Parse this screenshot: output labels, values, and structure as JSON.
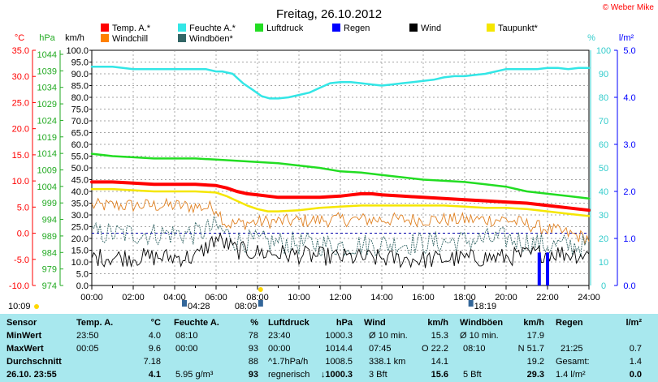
{
  "chart_data": {
    "type": "line",
    "title": "Freitag, 26.10.2012",
    "copyright": "© Weber Mike",
    "legend": [
      {
        "label": "Temp. A.*",
        "color": "#ff0000"
      },
      {
        "label": "Feuchte A.*",
        "color": "#33e6e6"
      },
      {
        "label": "Luftdruck",
        "color": "#22dd22"
      },
      {
        "label": "Regen",
        "color": "#0000ff"
      },
      {
        "label": "Wind",
        "color": "#000000"
      },
      {
        "label": "Taupunkt*",
        "color": "#f5e600"
      },
      {
        "label": "Windchill",
        "color": "#ff8000"
      },
      {
        "label": "Windböen*",
        "color": "#336666"
      }
    ],
    "axes": {
      "temp_unit": "°C",
      "temp_ticks": [
        "35.0",
        "30.0",
        "25.0",
        "20.0",
        "15.0",
        "10.0",
        "5.0",
        "0.0",
        "-5.0",
        "-10.0"
      ],
      "hpa_unit": "hPa",
      "hpa_ticks": [
        "1044",
        "1039",
        "1034",
        "1029",
        "1024",
        "1019",
        "1014",
        "1009",
        "1004",
        "999",
        "994",
        "989",
        "984",
        "979",
        "974"
      ],
      "kmh_unit": "km/h",
      "kmh_ticks": [
        "100.0",
        "95.0",
        "90.0",
        "85.0",
        "80.0",
        "75.0",
        "70.0",
        "65.0",
        "60.0",
        "55.0",
        "50.0",
        "45.0",
        "40.0",
        "35.0",
        "30.0",
        "25.0",
        "20.0",
        "15.0",
        "10.0",
        "5.0",
        "0.0"
      ],
      "pct_unit": "%",
      "pct_ticks": [
        "100",
        "90",
        "80",
        "70",
        "60",
        "50",
        "40",
        "30",
        "20",
        "10",
        "0"
      ],
      "rain_unit": "l/m²",
      "rain_ticks": [
        "5.0",
        "4.0",
        "3.0",
        "2.0",
        "1.0",
        "0.0"
      ],
      "x_ticks": [
        "00:00",
        "02:00",
        "04:00",
        "06:00",
        "08:00",
        "10:00",
        "12:00",
        "14:00",
        "16:00",
        "18:00",
        "20:00",
        "22:00",
        "24:00"
      ],
      "x_range_hours": [
        0,
        24
      ],
      "kmh_range": [
        0,
        100
      ],
      "pct_range": [
        0,
        100
      ],
      "rain_range": [
        0,
        5
      ]
    },
    "series": [
      {
        "name": "Feuchte A.*",
        "axis": "pct",
        "color": "#33e6e6",
        "width": 2.5,
        "x": [
          0,
          1,
          2,
          3,
          4,
          5,
          5.5,
          6,
          6.3,
          6.8,
          7.3,
          7.8,
          8.2,
          8.6,
          9,
          9.5,
          10,
          10.5,
          11,
          11.5,
          12,
          12.5,
          13,
          13.5,
          14,
          14.5,
          15,
          15.5,
          16,
          16.5,
          17,
          17.5,
          18,
          18.5,
          19,
          19.5,
          20,
          20.5,
          21,
          21.5,
          22,
          22.5,
          23,
          23.5,
          24
        ],
        "y": [
          93,
          93,
          92,
          92,
          92,
          92,
          92,
          91,
          91,
          90,
          86,
          83,
          80.5,
          79.5,
          79.5,
          80,
          81,
          82,
          84,
          86,
          86.5,
          86.5,
          86,
          85.5,
          85,
          85.5,
          86,
          86.5,
          87,
          87.5,
          88.5,
          89,
          89,
          89.5,
          90,
          91,
          92,
          92,
          92,
          92,
          92.5,
          92.5,
          92,
          92.5,
          92.5
        ]
      },
      {
        "name": "Luftdruck",
        "axis": "kmh",
        "color": "#22dd22",
        "width": 2.5,
        "x": [
          0,
          1,
          2,
          3,
          4,
          5,
          6,
          7,
          8,
          9,
          10,
          11,
          12,
          13,
          14,
          15,
          16,
          17,
          18,
          19,
          20,
          21,
          22,
          23,
          24
        ],
        "y": [
          56,
          55,
          54.5,
          54,
          54,
          54,
          53.5,
          53,
          52.5,
          52,
          51,
          50,
          48.5,
          48,
          47,
          46,
          45,
          44.5,
          44,
          43,
          42,
          40,
          39,
          38,
          37
        ]
      },
      {
        "name": "Taupunkt*",
        "axis": "kmh",
        "color": "#f5e600",
        "width": 2.5,
        "x": [
          0,
          1,
          2,
          3,
          4,
          5,
          6,
          6.5,
          7,
          7.5,
          8,
          8.5,
          9,
          10,
          11,
          12,
          13,
          14,
          15,
          16,
          17,
          18,
          19,
          20,
          21,
          22,
          23,
          24
        ],
        "y": [
          41,
          41,
          40.5,
          40,
          40,
          40,
          39.5,
          38,
          36,
          34,
          32.5,
          31.5,
          31.5,
          32,
          33,
          33.5,
          34,
          34,
          34,
          34,
          34,
          33.5,
          33,
          33,
          32.5,
          31.5,
          30.5,
          29.5
        ]
      },
      {
        "name": "Temp. A.*",
        "axis": "kmh",
        "color": "#ff0000",
        "width": 4,
        "x": [
          0,
          1,
          2,
          3,
          4,
          5,
          6,
          6.5,
          7,
          7.5,
          8,
          8.5,
          9,
          10,
          11,
          12,
          12.5,
          13,
          13.5,
          14,
          15,
          16,
          17,
          18,
          19,
          20,
          21,
          22,
          23,
          24
        ],
        "y": [
          44,
          44,
          43.5,
          43,
          43,
          43,
          42.5,
          41.5,
          40,
          39,
          38.5,
          38,
          37.5,
          37.5,
          37.5,
          38,
          38.5,
          39,
          39,
          38.5,
          38,
          37.5,
          37,
          36.5,
          36,
          35.5,
          35,
          34,
          33,
          32
        ]
      }
    ],
    "noisy_series": [
      {
        "name": "Windchill",
        "axis": "kmh",
        "color": "#e08020",
        "base": [
          [
            0,
            34
          ],
          [
            4,
            34
          ],
          [
            6,
            33
          ],
          [
            6.5,
            26
          ],
          [
            8,
            27
          ],
          [
            12,
            28
          ],
          [
            16,
            28
          ],
          [
            20,
            28
          ],
          [
            22,
            24
          ],
          [
            24,
            20
          ]
        ],
        "amp": 3
      },
      {
        "name": "Windböen*",
        "axis": "kmh",
        "color": "#336666",
        "base": [
          [
            0,
            22
          ],
          [
            5,
            22
          ],
          [
            6,
            25
          ],
          [
            7,
            19
          ],
          [
            12,
            17
          ],
          [
            16,
            18
          ],
          [
            20,
            20
          ],
          [
            22,
            17
          ],
          [
            24,
            17
          ]
        ],
        "amp": 5
      },
      {
        "name": "Wind",
        "axis": "kmh",
        "color": "#000000",
        "base": [
          [
            0,
            12
          ],
          [
            5,
            12
          ],
          [
            6,
            20
          ],
          [
            7,
            15
          ],
          [
            8,
            14
          ],
          [
            12,
            12
          ],
          [
            16,
            11
          ],
          [
            20,
            12
          ],
          [
            22,
            14
          ],
          [
            24,
            13
          ]
        ],
        "amp": 4
      }
    ],
    "rain_bars": [
      {
        "x": 21.6,
        "y": 0.7
      },
      {
        "x": 22.0,
        "y": 0.7
      }
    ],
    "reference_line": {
      "axis": "temp",
      "value": 0.0,
      "color": "#0000aa"
    },
    "markers": [
      {
        "label": "10:09",
        "x_hour": 0
      },
      {
        "label": "04:28",
        "x_hour": 4.47
      },
      {
        "label": "08:09",
        "x_hour": 8.15
      },
      {
        "label": "18:19",
        "x_hour": 18.3
      }
    ]
  },
  "table": {
    "row_labels": [
      "Sensor",
      "MinWert",
      "MaxWert",
      "Durchschnitt",
      "26.10. 23:55"
    ],
    "temp": {
      "header": "Temp. A.",
      "unit": "°C",
      "min_time": "23:50",
      "min": "4.0",
      "max_time": "00:05",
      "max": "9.6",
      "avg": "7.18",
      "current": "4.1"
    },
    "hum": {
      "header": "Feuchte A.",
      "unit": "%",
      "min_time": "08:10",
      "min": "78",
      "max_time": "00:00",
      "max": "93",
      "avg": "88",
      "abs": "5.95 g/m³",
      "current": "93"
    },
    "press": {
      "header": "Luftdruck",
      "unit": "hPa",
      "min_time": "23:40",
      "min": "1000.3",
      "max_time": "00:00",
      "max": "1014.4",
      "trend": "^1.7hPa/h",
      "avg": "1008.5",
      "forecast": "regnerisch",
      "current": "1000.3"
    },
    "wind": {
      "header": "Wind",
      "unit": "km/h",
      "avg_label": "Ø 10 min.",
      "avg_val": "15.3",
      "max_time": "07:45",
      "max_dir": "O 22.2",
      "dist": "338.1 km",
      "dist_val": "14.1",
      "bft": "3 Bft",
      "current": "15.6"
    },
    "gust": {
      "header": "Windböen",
      "unit": "km/h",
      "avg_label": "Ø 10 min.",
      "avg_val": "17.9",
      "max_time": "08:10",
      "max_dir": "N 51.7",
      "avg": "19.2",
      "bft": "5 Bft",
      "current": "29.3"
    },
    "rain": {
      "header": "Regen",
      "unit": "l/m²",
      "max_time": "21:25",
      "max": "0.7",
      "total_label": "Gesamt:",
      "total": "1.4",
      "day": "1.4 l/m²",
      "current": "0.0"
    }
  }
}
